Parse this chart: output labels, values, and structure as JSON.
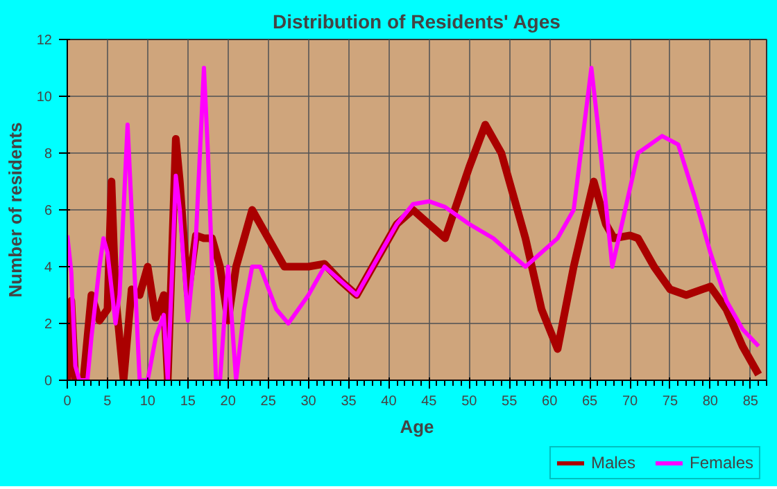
{
  "chart_data": {
    "type": "line",
    "title": "Distribution of Residents' Ages",
    "xlabel": "Age",
    "ylabel": "Number of residents",
    "xlim": [
      0,
      87
    ],
    "xticks": [
      0,
      5,
      10,
      15,
      20,
      25,
      30,
      35,
      40,
      45,
      50,
      55,
      60,
      65,
      70,
      75,
      80,
      85
    ],
    "ylim": [
      0,
      12
    ],
    "yticks": [
      0,
      2,
      4,
      6,
      8,
      10,
      12
    ],
    "grid": true,
    "legend": "bottom right",
    "line_style": "solid",
    "marker": "none",
    "series": [
      {
        "name": "Males",
        "color": "#aa0000",
        "x": [
          0,
          0.5,
          1,
          2,
          3,
          4,
          5,
          5.5,
          6,
          7,
          8,
          9,
          10,
          11,
          12,
          12.5,
          13.5,
          14,
          15,
          16,
          17,
          18,
          19,
          20,
          21,
          23,
          25,
          27,
          30,
          32,
          34,
          36,
          38,
          41,
          43,
          45,
          47,
          50,
          52,
          54,
          57,
          59,
          61,
          63,
          65.5,
          67,
          68,
          70,
          71,
          73,
          75,
          77,
          80,
          82,
          84,
          86
        ],
        "values": [
          0,
          2.8,
          0,
          0,
          3,
          2.1,
          2.5,
          7,
          3,
          0,
          3.2,
          3,
          4,
          2.2,
          3,
          0,
          8.5,
          7,
          3,
          5.1,
          5,
          5,
          4,
          2.1,
          4,
          6,
          5,
          4,
          4,
          4.1,
          3.5,
          3,
          4,
          5.5,
          6,
          5.5,
          5,
          7.5,
          9,
          8,
          5,
          2.5,
          1.1,
          4,
          7,
          5.5,
          5,
          5.1,
          5,
          4,
          3.2,
          3,
          3.3,
          2.5,
          1.2,
          0.2
        ]
      },
      {
        "name": "Females",
        "color": "#ff00ff",
        "x": [
          0,
          0.5,
          1,
          1.5,
          2.5,
          3,
          4,
          4.5,
          5,
          6,
          6.5,
          7.5,
          8,
          9,
          10,
          11,
          12,
          12.5,
          13.5,
          14,
          15,
          16,
          17,
          17.5,
          18.5,
          19,
          20,
          20.5,
          21,
          22,
          23,
          24,
          26,
          27.5,
          30,
          32,
          34,
          36,
          38,
          41,
          43,
          45,
          47,
          50,
          53,
          55,
          57,
          59,
          61,
          63,
          65.2,
          66,
          67.8,
          69,
          71,
          74,
          76,
          78,
          80,
          82,
          84,
          86
        ],
        "values": [
          5.1,
          3.8,
          0.5,
          0,
          0,
          1.5,
          4,
          5,
          4.5,
          2,
          3,
          9,
          6,
          0,
          0,
          1.5,
          2.3,
          0,
          7.2,
          6,
          2.1,
          5,
          11,
          8,
          0,
          0,
          4,
          2,
          0,
          2.5,
          4,
          4,
          2.5,
          2,
          3,
          4,
          3.5,
          3,
          4,
          5.5,
          6.2,
          6.3,
          6.1,
          5.5,
          5,
          4.5,
          4,
          4.5,
          5,
          6,
          11,
          9,
          4,
          5.5,
          8,
          8.6,
          8.3,
          6.5,
          4.5,
          2.8,
          1.8,
          1.2
        ]
      }
    ]
  }
}
